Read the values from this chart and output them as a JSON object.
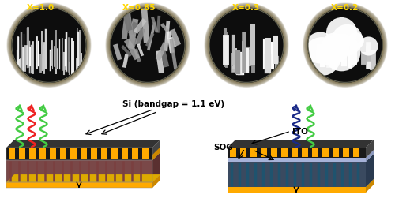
{
  "top_labels": [
    "X=1.0",
    "X=0.85",
    "X=0.3",
    "X=0.2"
  ],
  "label_color": "#FFD700",
  "top_bg": "#1a1200",
  "label_fontsize": 7.5,
  "si_label": "Si (bandgap = 1.1 eV)",
  "ito_label": "ITO",
  "sog_label": "SOG",
  "gold_color": "#FFAA00",
  "dark_color": "#1a1a1a",
  "nanowire_color_left": "#7A4040",
  "nanowire_color_right_a": "#2D5060",
  "nanowire_color_right_b": "#3D7080",
  "ito_color": "#8899CC",
  "gray_side": "#AAAAAA",
  "top_stripe_dark": "#222222",
  "annotation_fontsize": 7.5
}
